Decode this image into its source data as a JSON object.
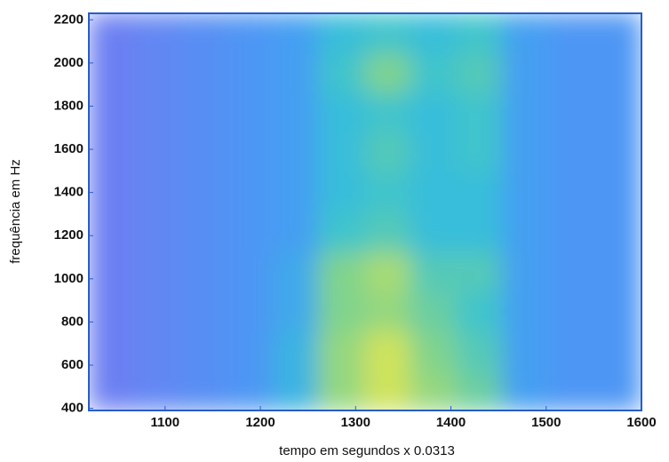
{
  "chart_data": {
    "type": "heatmap",
    "xlabel": "tempo em segundos x 0.0313",
    "ylabel": "frequência em Hz",
    "x": [
      1044,
      1092,
      1140,
      1189,
      1237,
      1285,
      1334,
      1382,
      1430,
      1479,
      1527,
      1576
    ],
    "y": [
      482,
      666,
      850,
      1034,
      1218,
      1402,
      1586,
      1770,
      1954,
      2138
    ],
    "z": [
      [
        0.1,
        0.15,
        0.2,
        0.25,
        0.4,
        0.7,
        0.85,
        0.7,
        0.6,
        0.3,
        0.25,
        0.25
      ],
      [
        0.1,
        0.15,
        0.2,
        0.25,
        0.4,
        0.7,
        0.85,
        0.65,
        0.55,
        0.3,
        0.25,
        0.25
      ],
      [
        0.1,
        0.15,
        0.2,
        0.25,
        0.35,
        0.65,
        0.7,
        0.6,
        0.5,
        0.3,
        0.25,
        0.25
      ],
      [
        0.1,
        0.15,
        0.2,
        0.25,
        0.35,
        0.65,
        0.75,
        0.55,
        0.55,
        0.3,
        0.25,
        0.25
      ],
      [
        0.1,
        0.15,
        0.2,
        0.25,
        0.3,
        0.5,
        0.55,
        0.45,
        0.45,
        0.3,
        0.25,
        0.25
      ],
      [
        0.1,
        0.15,
        0.2,
        0.25,
        0.3,
        0.45,
        0.5,
        0.45,
        0.45,
        0.3,
        0.25,
        0.25
      ],
      [
        0.1,
        0.15,
        0.2,
        0.25,
        0.3,
        0.45,
        0.55,
        0.45,
        0.5,
        0.3,
        0.25,
        0.25
      ],
      [
        0.1,
        0.15,
        0.2,
        0.25,
        0.3,
        0.45,
        0.5,
        0.45,
        0.5,
        0.3,
        0.25,
        0.25
      ],
      [
        0.1,
        0.15,
        0.2,
        0.25,
        0.3,
        0.5,
        0.65,
        0.5,
        0.55,
        0.3,
        0.25,
        0.25
      ],
      [
        0.1,
        0.15,
        0.2,
        0.25,
        0.3,
        0.45,
        0.5,
        0.45,
        0.5,
        0.3,
        0.25,
        0.25
      ]
    ],
    "colorscale": [
      "#6c7ff2",
      "#459cf4",
      "#35c2d6",
      "#85d488",
      "#cfe35c"
    ],
    "xlim": [
      1020,
      1600
    ],
    "ylim": [
      390,
      2230
    ],
    "xticks": [
      1100,
      1200,
      1300,
      1400,
      1500,
      1600
    ],
    "yticks": [
      400,
      600,
      800,
      1000,
      1200,
      1400,
      1600,
      1800,
      2000,
      2200
    ],
    "frame_color": "#2a5cc8"
  }
}
